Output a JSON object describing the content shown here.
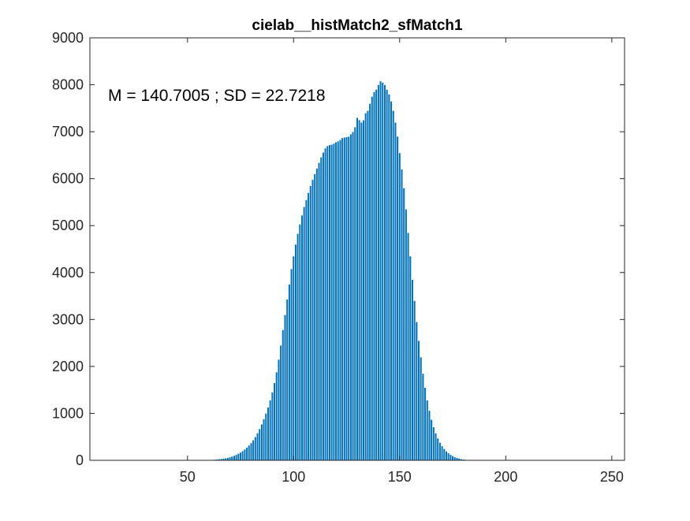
{
  "chart_data": {
    "type": "bar",
    "title": "cielab__histMatch2_sfMatch1",
    "xlabel": "",
    "ylabel": "",
    "xlim": [
      4,
      256
    ],
    "ylim": [
      0,
      9000
    ],
    "x_ticks": [
      50,
      100,
      150,
      200,
      250
    ],
    "y_ticks": [
      0,
      1000,
      2000,
      3000,
      4000,
      5000,
      6000,
      7000,
      8000,
      9000
    ],
    "x_tick_labels": [
      "50",
      "100",
      "150",
      "200",
      "250"
    ],
    "y_tick_labels": [
      "0",
      "1000",
      "2000",
      "3000",
      "4000",
      "5000",
      "6000",
      "7000",
      "8000",
      "9000"
    ],
    "annotation": "M = 140.7005 ; SD = 22.7218",
    "bar_color": "#0072BD",
    "bar_edge_color": "#ffffff",
    "grid": false,
    "bins": [
      60,
      61,
      62,
      63,
      64,
      65,
      66,
      67,
      68,
      69,
      70,
      71,
      72,
      73,
      74,
      75,
      76,
      77,
      78,
      79,
      80,
      81,
      82,
      83,
      84,
      85,
      86,
      87,
      88,
      89,
      90,
      91,
      92,
      93,
      94,
      95,
      96,
      97,
      98,
      99,
      100,
      101,
      102,
      103,
      104,
      105,
      106,
      107,
      108,
      109,
      110,
      111,
      112,
      113,
      114,
      115,
      116,
      117,
      118,
      119,
      120,
      121,
      122,
      123,
      124,
      125,
      126,
      127,
      128,
      129,
      130,
      131,
      132,
      133,
      134,
      135,
      136,
      137,
      138,
      139,
      140,
      141,
      142,
      143,
      144,
      145,
      146,
      147,
      148,
      149,
      150,
      151,
      152,
      153,
      154,
      155,
      156,
      157,
      158,
      159,
      160,
      161,
      162,
      163,
      164,
      165,
      166,
      167,
      168,
      169,
      170,
      171,
      172,
      173,
      174,
      175,
      176,
      177,
      178,
      179,
      180,
      181,
      182,
      183,
      184,
      185,
      186,
      187,
      188,
      189,
      190,
      191,
      192,
      193,
      194,
      195,
      196,
      197,
      198,
      199,
      200,
      201,
      202,
      203,
      204,
      205,
      206,
      207,
      208,
      209,
      210,
      211,
      212,
      213,
      214,
      215,
      216
    ],
    "values": [
      10,
      12,
      15,
      18,
      22,
      27,
      33,
      40,
      48,
      58,
      70,
      85,
      100,
      120,
      145,
      170,
      200,
      235,
      275,
      320,
      370,
      430,
      500,
      580,
      670,
      770,
      880,
      1000,
      1130,
      1280,
      1450,
      1650,
      1880,
      2150,
      2450,
      2780,
      3100,
      3430,
      3750,
      4080,
      4350,
      4600,
      4830,
      5030,
      5220,
      5400,
      5550,
      5700,
      5850,
      5980,
      6100,
      6220,
      6340,
      6460,
      6560,
      6650,
      6700,
      6720,
      6730,
      6750,
      6780,
      6800,
      6830,
      6870,
      6880,
      6890,
      6900,
      6950,
      7000,
      7100,
      7300,
      7250,
      7200,
      7250,
      7400,
      7450,
      7600,
      7750,
      7850,
      7900,
      8000,
      8080,
      8050,
      8000,
      7900,
      7800,
      7650,
      7450,
      7200,
      6900,
      6550,
      6200,
      5800,
      5350,
      4850,
      4350,
      3850,
      3400,
      2950,
      2550,
      2200,
      1850,
      1550,
      1280,
      1060,
      870,
      710,
      580,
      470,
      380,
      305,
      245,
      195,
      155,
      122,
      95,
      73,
      55,
      41,
      30,
      22,
      16,
      12,
      9,
      7,
      5,
      4,
      3,
      2,
      2,
      1,
      1,
      1,
      1,
      1,
      1,
      0,
      0,
      0,
      0,
      0,
      0,
      0,
      0,
      0,
      0,
      0,
      0,
      0,
      0,
      0,
      0,
      0,
      0,
      0,
      0,
      0
    ]
  }
}
